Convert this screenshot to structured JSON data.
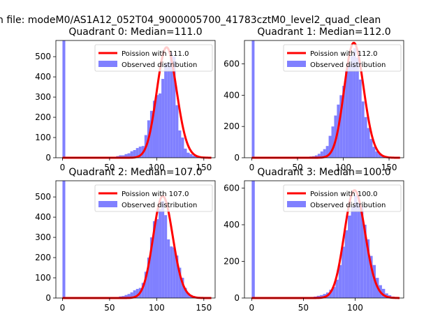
{
  "figure": {
    "suptitle": "n file: modeM0/AS1A12_052T04_9000005700_41783cztM0_level2_quad_clean"
  },
  "chart_data": [
    {
      "type": "bar",
      "title": "Quadrant 0: Median=111.0",
      "xlim": [
        -7,
        162
      ],
      "ylim": [
        0,
        580
      ],
      "xticks": [
        0,
        50,
        100,
        150
      ],
      "yticks": [
        0,
        100,
        200,
        300,
        400,
        500
      ],
      "legend": {
        "position": "top-right",
        "entries": [
          "Poission with 111.0",
          "Observed distribution"
        ]
      },
      "poisson_mean": 111.0,
      "curve_color": "#ff0000",
      "hist_color": "#8080ff",
      "hist": {
        "bin_width": 3,
        "bins": [
          {
            "x": 0,
            "y": 580
          },
          {
            "x": 57,
            "y": 8
          },
          {
            "x": 60,
            "y": 12
          },
          {
            "x": 63,
            "y": 12
          },
          {
            "x": 66,
            "y": 18
          },
          {
            "x": 69,
            "y": 22
          },
          {
            "x": 72,
            "y": 32
          },
          {
            "x": 75,
            "y": 38
          },
          {
            "x": 78,
            "y": 48
          },
          {
            "x": 81,
            "y": 55
          },
          {
            "x": 84,
            "y": 58
          },
          {
            "x": 87,
            "y": 112
          },
          {
            "x": 90,
            "y": 185
          },
          {
            "x": 93,
            "y": 232
          },
          {
            "x": 96,
            "y": 282
          },
          {
            "x": 99,
            "y": 310
          },
          {
            "x": 102,
            "y": 318
          },
          {
            "x": 105,
            "y": 390
          },
          {
            "x": 108,
            "y": 465
          },
          {
            "x": 111,
            "y": 470
          },
          {
            "x": 114,
            "y": 520
          },
          {
            "x": 117,
            "y": 500
          },
          {
            "x": 120,
            "y": 260
          },
          {
            "x": 123,
            "y": 135
          },
          {
            "x": 126,
            "y": 100
          },
          {
            "x": 129,
            "y": 45
          },
          {
            "x": 132,
            "y": 25
          },
          {
            "x": 135,
            "y": 18
          },
          {
            "x": 138,
            "y": 10
          },
          {
            "x": 141,
            "y": 8
          },
          {
            "x": 144,
            "y": 6
          },
          {
            "x": 147,
            "y": 4
          },
          {
            "x": 150,
            "y": 2
          }
        ]
      }
    },
    {
      "type": "bar",
      "title": "Quadrant 1: Median=112.0",
      "xlim": [
        -8,
        166
      ],
      "ylim": [
        0,
        750
      ],
      "xticks": [
        0,
        50,
        100,
        150
      ],
      "yticks": [
        0,
        200,
        400,
        600
      ],
      "legend": {
        "position": "top-right",
        "entries": [
          "Poission with 112.0",
          "Observed distribution"
        ]
      },
      "poisson_mean": 112.0,
      "curve_color": "#ff0000",
      "hist_color": "#8080ff",
      "hist": {
        "bin_width": 3,
        "bins": [
          {
            "x": 0,
            "y": 750
          },
          {
            "x": 60,
            "y": 5
          },
          {
            "x": 63,
            "y": 8
          },
          {
            "x": 66,
            "y": 10
          },
          {
            "x": 69,
            "y": 15
          },
          {
            "x": 72,
            "y": 25
          },
          {
            "x": 75,
            "y": 40
          },
          {
            "x": 78,
            "y": 55
          },
          {
            "x": 81,
            "y": 75
          },
          {
            "x": 84,
            "y": 140
          },
          {
            "x": 87,
            "y": 200
          },
          {
            "x": 90,
            "y": 270
          },
          {
            "x": 93,
            "y": 340
          },
          {
            "x": 96,
            "y": 400
          },
          {
            "x": 99,
            "y": 460
          },
          {
            "x": 102,
            "y": 560
          },
          {
            "x": 105,
            "y": 590
          },
          {
            "x": 108,
            "y": 650
          },
          {
            "x": 111,
            "y": 700
          },
          {
            "x": 114,
            "y": 640
          },
          {
            "x": 117,
            "y": 500
          },
          {
            "x": 120,
            "y": 360
          },
          {
            "x": 123,
            "y": 260
          },
          {
            "x": 126,
            "y": 190
          },
          {
            "x": 129,
            "y": 120
          },
          {
            "x": 132,
            "y": 70
          },
          {
            "x": 135,
            "y": 40
          },
          {
            "x": 138,
            "y": 25
          },
          {
            "x": 141,
            "y": 15
          },
          {
            "x": 144,
            "y": 8
          },
          {
            "x": 147,
            "y": 5
          },
          {
            "x": 150,
            "y": 3
          }
        ]
      }
    },
    {
      "type": "bar",
      "title": "Quadrant 2: Median=107.0",
      "xlim": [
        -7,
        162
      ],
      "ylim": [
        0,
        580
      ],
      "xticks": [
        0,
        50,
        100,
        150
      ],
      "yticks": [
        0,
        100,
        200,
        300,
        400,
        500
      ],
      "legend": {
        "position": "top-right",
        "entries": [
          "Poission with 107.0",
          "Observed distribution"
        ]
      },
      "poisson_mean": 107.0,
      "curve_color": "#ff0000",
      "hist_color": "#8080ff",
      "hist": {
        "bin_width": 3,
        "bins": [
          {
            "x": 0,
            "y": 580
          },
          {
            "x": 57,
            "y": 5
          },
          {
            "x": 60,
            "y": 8
          },
          {
            "x": 63,
            "y": 10
          },
          {
            "x": 66,
            "y": 15
          },
          {
            "x": 69,
            "y": 20
          },
          {
            "x": 72,
            "y": 28
          },
          {
            "x": 75,
            "y": 38
          },
          {
            "x": 78,
            "y": 45
          },
          {
            "x": 81,
            "y": 50
          },
          {
            "x": 84,
            "y": 75
          },
          {
            "x": 87,
            "y": 130
          },
          {
            "x": 90,
            "y": 200
          },
          {
            "x": 93,
            "y": 300
          },
          {
            "x": 96,
            "y": 380
          },
          {
            "x": 99,
            "y": 390
          },
          {
            "x": 102,
            "y": 440
          },
          {
            "x": 105,
            "y": 480
          },
          {
            "x": 108,
            "y": 410
          },
          {
            "x": 111,
            "y": 290
          },
          {
            "x": 114,
            "y": 255
          },
          {
            "x": 117,
            "y": 250
          },
          {
            "x": 120,
            "y": 210
          },
          {
            "x": 123,
            "y": 150
          },
          {
            "x": 126,
            "y": 100
          },
          {
            "x": 129,
            "y": 50
          },
          {
            "x": 132,
            "y": 25
          },
          {
            "x": 135,
            "y": 15
          },
          {
            "x": 138,
            "y": 10
          },
          {
            "x": 141,
            "y": 5
          },
          {
            "x": 144,
            "y": 3
          }
        ]
      }
    },
    {
      "type": "bar",
      "title": "Quadrant 3: Median=100.0",
      "xlim": [
        -7,
        147
      ],
      "ylim": [
        0,
        640
      ],
      "xticks": [
        0,
        50,
        100
      ],
      "yticks": [
        0,
        200,
        400,
        600
      ],
      "legend": {
        "position": "top-right",
        "entries": [
          "Poission with 100.0",
          "Observed distribution"
        ]
      },
      "poisson_mean": 100.0,
      "curve_color": "#ff0000",
      "hist_color": "#8080ff",
      "hist": {
        "bin_width": 3,
        "bins": [
          {
            "x": 0,
            "y": 640
          },
          {
            "x": 54,
            "y": 4
          },
          {
            "x": 57,
            "y": 6
          },
          {
            "x": 60,
            "y": 8
          },
          {
            "x": 63,
            "y": 12
          },
          {
            "x": 66,
            "y": 16
          },
          {
            "x": 69,
            "y": 22
          },
          {
            "x": 72,
            "y": 30
          },
          {
            "x": 75,
            "y": 45
          },
          {
            "x": 78,
            "y": 60
          },
          {
            "x": 81,
            "y": 100
          },
          {
            "x": 84,
            "y": 180
          },
          {
            "x": 87,
            "y": 280
          },
          {
            "x": 90,
            "y": 370
          },
          {
            "x": 93,
            "y": 450
          },
          {
            "x": 96,
            "y": 500
          },
          {
            "x": 99,
            "y": 560
          },
          {
            "x": 102,
            "y": 520
          },
          {
            "x": 105,
            "y": 500
          },
          {
            "x": 108,
            "y": 400
          },
          {
            "x": 111,
            "y": 320
          },
          {
            "x": 114,
            "y": 230
          },
          {
            "x": 117,
            "y": 180
          },
          {
            "x": 120,
            "y": 110
          },
          {
            "x": 123,
            "y": 70
          },
          {
            "x": 126,
            "y": 50
          },
          {
            "x": 129,
            "y": 25
          },
          {
            "x": 132,
            "y": 15
          },
          {
            "x": 135,
            "y": 8
          },
          {
            "x": 138,
            "y": 5
          }
        ]
      }
    }
  ]
}
